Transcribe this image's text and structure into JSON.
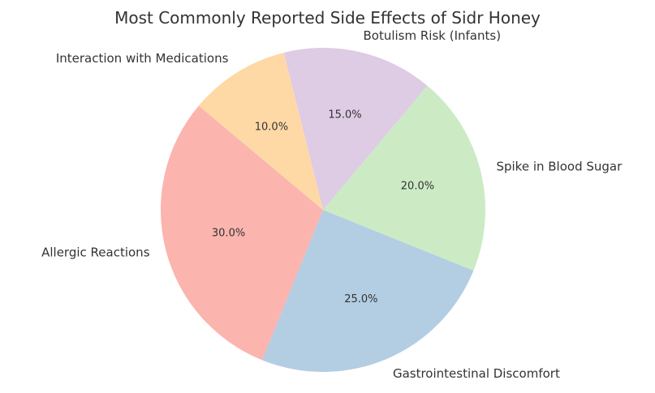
{
  "chart_data": {
    "type": "pie",
    "title": "Most Commonly Reported Side Effects of Sidr Honey",
    "slices": [
      {
        "label": "Allergic Reactions",
        "value": 30.0,
        "pct_label": "30.0%",
        "color": "#fbb4ae"
      },
      {
        "label": "Gastrointestinal Discomfort",
        "value": 25.0,
        "pct_label": "25.0%",
        "color": "#b3cde3"
      },
      {
        "label": "Spike in Blood Sugar",
        "value": 20.0,
        "pct_label": "20.0%",
        "color": "#ccebc5"
      },
      {
        "label": "Botulism Risk (Infants)",
        "value": 15.0,
        "pct_label": "15.0%",
        "color": "#decbe4"
      },
      {
        "label": "Interaction with Medications",
        "value": 10.0,
        "pct_label": "10.0%",
        "color": "#fed9a6"
      }
    ]
  }
}
